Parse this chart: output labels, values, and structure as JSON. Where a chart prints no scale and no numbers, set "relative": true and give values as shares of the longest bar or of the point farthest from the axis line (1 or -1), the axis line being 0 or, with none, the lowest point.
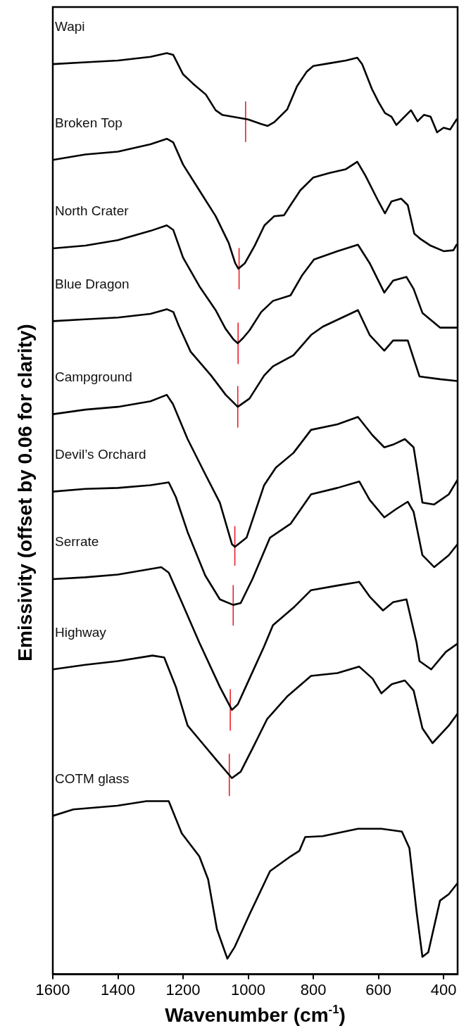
{
  "chart_data": {
    "type": "line",
    "xlabel": "Wavenumber (cm$^{-1}$)",
    "ylabel": "Emissivity (offset by 0.06 for clarity)",
    "relative": true,
    "xlim": [
      1600,
      357
    ],
    "xticks": [
      1600,
      1400,
      1200,
      1000,
      800,
      600,
      400
    ],
    "grid": false,
    "legend": false,
    "marker": "none",
    "line_style": "solid",
    "series": [
      {
        "name": "Wapi",
        "color": "#000000",
        "x": [
          1600,
          1500,
          1400,
          1300,
          1250,
          1230,
          1200,
          1170,
          1130,
          1100,
          1080,
          1000,
          960,
          940,
          920,
          880,
          850,
          820,
          800,
          750,
          700,
          665,
          650,
          620,
          600,
          580,
          560,
          545,
          520,
          500,
          480,
          460,
          440,
          420,
          400,
          380,
          360
        ],
        "values": [
          0.988,
          0.99,
          0.992,
          0.996,
          1.0,
          0.998,
          0.977,
          0.967,
          0.955,
          0.938,
          0.933,
          0.928,
          0.923,
          0.921,
          0.925,
          0.939,
          0.964,
          0.98,
          0.986,
          0.989,
          0.992,
          0.995,
          0.988,
          0.961,
          0.947,
          0.935,
          0.931,
          0.922,
          0.931,
          0.938,
          0.926,
          0.933,
          0.931,
          0.914,
          0.919,
          0.917,
          0.928
        ]
      },
      {
        "name": "Broken Top",
        "color": "#000000",
        "x": [
          1600,
          1500,
          1400,
          1300,
          1250,
          1230,
          1200,
          1150,
          1100,
          1060,
          1040,
          1030,
          1010,
          980,
          950,
          920,
          890,
          870,
          840,
          800,
          750,
          700,
          665,
          640,
          600,
          580,
          560,
          530,
          510,
          490,
          470,
          440,
          400,
          370,
          360
        ],
        "values": [
          0.884,
          0.89,
          0.893,
          0.901,
          0.907,
          0.903,
          0.879,
          0.851,
          0.823,
          0.794,
          0.772,
          0.766,
          0.772,
          0.791,
          0.813,
          0.823,
          0.824,
          0.835,
          0.851,
          0.865,
          0.87,
          0.874,
          0.882,
          0.867,
          0.839,
          0.826,
          0.839,
          0.842,
          0.835,
          0.804,
          0.798,
          0.791,
          0.785,
          0.786,
          0.792
        ]
      },
      {
        "name": "North Crater",
        "color": "#000000",
        "x": [
          1600,
          1500,
          1400,
          1300,
          1250,
          1230,
          1200,
          1150,
          1100,
          1070,
          1045,
          1032,
          1015,
          996,
          960,
          924,
          870,
          834,
          798,
          726,
          663,
          627,
          582,
          555,
          514,
          492,
          465,
          411,
          357
        ],
        "values": [
          0.788,
          0.791,
          0.797,
          0.807,
          0.813,
          0.808,
          0.778,
          0.747,
          0.721,
          0.701,
          0.689,
          0.685,
          0.691,
          0.699,
          0.719,
          0.731,
          0.737,
          0.759,
          0.776,
          0.785,
          0.792,
          0.772,
          0.74,
          0.753,
          0.757,
          0.744,
          0.718,
          0.702,
          0.702
        ]
      },
      {
        "name": "Blue Dragon",
        "color": "#000000",
        "x": [
          1600,
          1500,
          1400,
          1300,
          1250,
          1230,
          1213,
          1177,
          1114,
          1069,
          1032,
          996,
          951,
          924,
          861,
          807,
          771,
          663,
          627,
          582,
          555,
          510,
          474,
          411,
          357
        ],
        "values": [
          0.709,
          0.711,
          0.713,
          0.717,
          0.722,
          0.719,
          0.704,
          0.676,
          0.65,
          0.629,
          0.616,
          0.625,
          0.65,
          0.66,
          0.672,
          0.694,
          0.703,
          0.721,
          0.694,
          0.677,
          0.688,
          0.688,
          0.649,
          0.646,
          0.644
        ]
      },
      {
        "name": "Campground",
        "color": "#000000",
        "x": [
          1600,
          1500,
          1400,
          1300,
          1250,
          1231,
          1186,
          1132,
          1087,
          1050,
          1041,
          1005,
          951,
          915,
          861,
          807,
          726,
          663,
          618,
          582,
          555,
          519,
          492,
          465,
          429,
          384,
          357
        ],
        "values": [
          0.608,
          0.613,
          0.616,
          0.622,
          0.629,
          0.619,
          0.581,
          0.543,
          0.512,
          0.467,
          0.464,
          0.474,
          0.531,
          0.55,
          0.566,
          0.591,
          0.597,
          0.605,
          0.585,
          0.572,
          0.575,
          0.581,
          0.572,
          0.512,
          0.51,
          0.521,
          0.537
        ]
      },
      {
        "name": "Devil’s Orchard",
        "color": "#000000",
        "x": [
          1600,
          1500,
          1400,
          1300,
          1244,
          1222,
          1186,
          1132,
          1087,
          1046,
          1023,
          987,
          933,
          870,
          807,
          726,
          659,
          627,
          582,
          546,
          510,
          492,
          465,
          429,
          384,
          357
        ],
        "values": [
          0.524,
          0.527,
          0.528,
          0.531,
          0.534,
          0.518,
          0.48,
          0.433,
          0.407,
          0.401,
          0.403,
          0.429,
          0.474,
          0.489,
          0.521,
          0.528,
          0.535,
          0.515,
          0.496,
          0.505,
          0.513,
          0.502,
          0.455,
          0.442,
          0.455,
          0.467
        ]
      },
      {
        "name": "Serrate",
        "color": "#000000",
        "x": [
          1600,
          1500,
          1400,
          1267,
          1244,
          1204,
          1150,
          1087,
          1050,
          1032,
          996,
          951,
          924,
          861,
          807,
          726,
          659,
          627,
          586,
          555,
          514,
          483,
          474,
          438,
          393,
          357
        ],
        "values": [
          0.429,
          0.431,
          0.434,
          0.442,
          0.436,
          0.404,
          0.36,
          0.312,
          0.287,
          0.293,
          0.321,
          0.356,
          0.379,
          0.398,
          0.417,
          0.422,
          0.426,
          0.41,
          0.395,
          0.404,
          0.407,
          0.36,
          0.34,
          0.331,
          0.35,
          0.359
        ]
      },
      {
        "name": "Highway",
        "color": "#000000",
        "x": [
          1600,
          1500,
          1400,
          1294,
          1258,
          1222,
          1186,
          1141,
          1096,
          1050,
          1023,
          987,
          942,
          879,
          807,
          726,
          659,
          618,
          591,
          559,
          519,
          492,
          465,
          434,
          384,
          357
        ],
        "values": [
          0.331,
          0.336,
          0.34,
          0.346,
          0.344,
          0.312,
          0.27,
          0.251,
          0.232,
          0.213,
          0.22,
          0.245,
          0.277,
          0.302,
          0.324,
          0.327,
          0.334,
          0.321,
          0.305,
          0.315,
          0.319,
          0.308,
          0.267,
          0.251,
          0.27,
          0.283
        ]
      },
      {
        "name": "COTM glass",
        "color": "#000000",
        "x": [
          1600,
          1537,
          1402,
          1312,
          1244,
          1204,
          1150,
          1123,
          1096,
          1064,
          1041,
          996,
          933,
          870,
          843,
          825,
          771,
          663,
          591,
          528,
          505,
          483,
          465,
          447,
          411,
          384,
          357
        ],
        "values": [
          0.172,
          0.179,
          0.183,
          0.188,
          0.188,
          0.153,
          0.128,
          0.103,
          0.049,
          0.017,
          0.03,
          0.065,
          0.112,
          0.128,
          0.134,
          0.149,
          0.15,
          0.158,
          0.158,
          0.155,
          0.137,
          0.068,
          0.019,
          0.024,
          0.08,
          0.087,
          0.099
        ]
      },
      {
        "color": "#e8202a",
        "x": [
          1008,
          1008
        ],
        "values": [
          0.904,
          0.947
        ]
      },
      {
        "color": "#e8202a",
        "x": [
          1028,
          1028
        ],
        "values": [
          0.744,
          0.788
        ]
      },
      {
        "color": "#e8202a",
        "x": [
          1031,
          1031
        ],
        "values": [
          0.663,
          0.707
        ]
      },
      {
        "color": "#e8202a",
        "x": [
          1032,
          1032
        ],
        "values": [
          0.594,
          0.638
        ]
      },
      {
        "color": "#e8202a",
        "x": [
          1041,
          1041
        ],
        "values": [
          0.444,
          0.486
        ]
      },
      {
        "color": "#e8202a",
        "x": [
          1046,
          1046
        ],
        "values": [
          0.379,
          0.422
        ]
      },
      {
        "color": "#e8202a",
        "x": [
          1055,
          1055
        ],
        "values": [
          0.265,
          0.309
        ]
      },
      {
        "color": "#e8202a",
        "x": [
          1058,
          1058
        ],
        "values": [
          0.194,
          0.239
        ]
      }
    ]
  }
}
